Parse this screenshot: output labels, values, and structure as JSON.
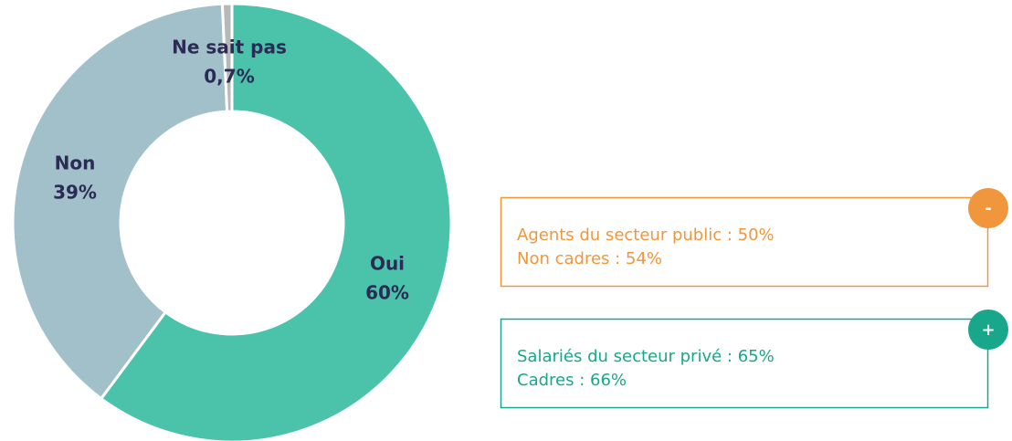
{
  "chart_data": {
    "type": "donut",
    "categories": [
      "Oui",
      "Non",
      "Ne sait pas"
    ],
    "values": [
      60,
      39,
      0.7
    ],
    "value_labels": [
      "60%",
      "39%",
      "0,7%"
    ],
    "colors": [
      "#4bc3ab",
      "#a1c0c9",
      "#b8b8b8"
    ]
  },
  "callouts": [
    {
      "badge": "-",
      "color": "#f0963c",
      "lines": [
        "Agents du secteur public : 50%",
        "Non cadres : 54%"
      ]
    },
    {
      "badge": "+",
      "color": "#18a78a",
      "lines": [
        "Salariés du secteur privé : 65%",
        "Cadres : 66%"
      ]
    }
  ]
}
